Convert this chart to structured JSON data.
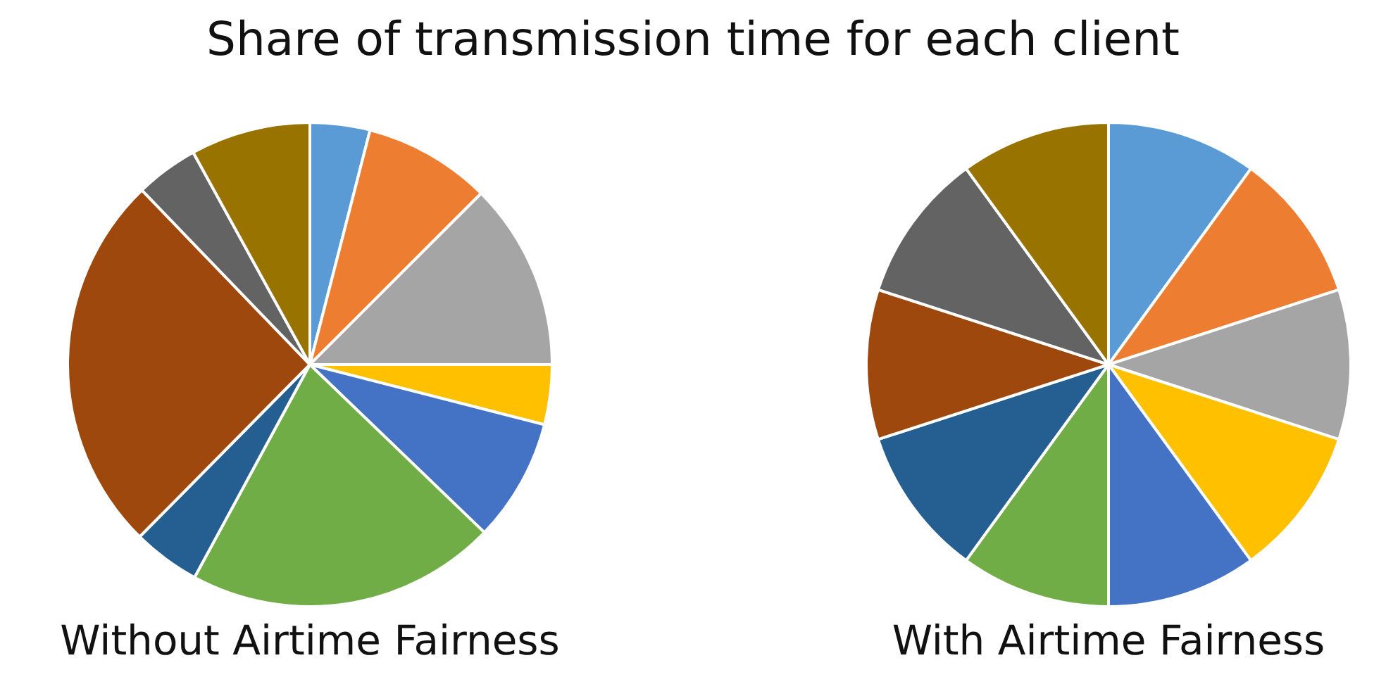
{
  "chart_data": [
    {
      "type": "pie",
      "title": "Share of transmission time for each client",
      "subtitle": "Without Airtime Fairness",
      "categories": [
        null,
        null,
        null,
        null,
        null,
        null,
        null,
        null,
        null,
        null
      ],
      "values": [
        4,
        8.5,
        12.5,
        4,
        8.2,
        20.7,
        4.5,
        25.4,
        4.2,
        8
      ],
      "colors": [
        "#5b9bd5",
        "#ed7d31",
        "#a5a5a5",
        "#ffc000",
        "#4472c4",
        "#70ad47",
        "#255e91",
        "#9e480e",
        "#636363",
        "#997300"
      ]
    },
    {
      "type": "pie",
      "subtitle": "With Airtime Fairness",
      "categories": [
        null,
        null,
        null,
        null,
        null,
        null,
        null,
        null,
        null,
        null
      ],
      "values": [
        10,
        10,
        10,
        10,
        10,
        10,
        10,
        10,
        10,
        10
      ],
      "colors": [
        "#5b9bd5",
        "#ed7d31",
        "#a5a5a5",
        "#ffc000",
        "#4472c4",
        "#70ad47",
        "#255e91",
        "#9e480e",
        "#636363",
        "#997300"
      ]
    }
  ]
}
